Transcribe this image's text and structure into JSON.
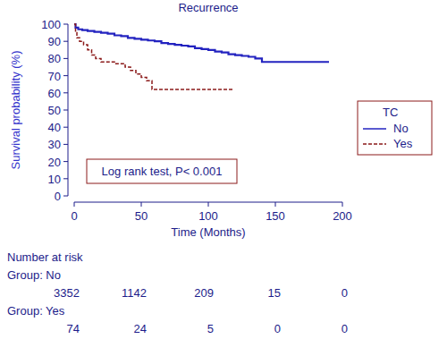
{
  "chart_data": {
    "type": "step",
    "title": "Recurrence",
    "x_label": "Time (Months)",
    "y_label": "Survival probability (%)",
    "xlim": [
      0,
      200
    ],
    "ylim": [
      0,
      100
    ],
    "xticks": [
      0,
      50,
      100,
      150,
      200
    ],
    "yticks": [
      0,
      10,
      20,
      30,
      40,
      50,
      60,
      70,
      80,
      90,
      100
    ],
    "legend": "right",
    "legend_title": "TC",
    "annotation": "Log rank test, P< 0.001",
    "series": [
      {
        "name": "No",
        "color": "#2323c0",
        "line_style": "solid",
        "x": [
          0,
          1,
          3,
          6,
          10,
          15,
          20,
          25,
          30,
          35,
          40,
          45,
          50,
          55,
          60,
          65,
          70,
          75,
          80,
          85,
          90,
          95,
          100,
          105,
          110,
          115,
          120,
          125,
          130,
          135,
          140,
          190
        ],
        "values": [
          100,
          98,
          97,
          96.5,
          96,
          95.5,
          95,
          94.5,
          93.5,
          93,
          92,
          91.5,
          91,
          90.5,
          90,
          89,
          88.5,
          88,
          87.5,
          87,
          86,
          85.5,
          85,
          84,
          83.5,
          82.5,
          82,
          81.5,
          81,
          80,
          78,
          78
        ]
      },
      {
        "name": "Yes",
        "color": "#8b1a1a",
        "line_style": "dashed",
        "x": [
          0,
          1,
          2,
          4,
          7,
          10,
          13,
          16,
          20,
          30,
          38,
          42,
          46,
          50,
          54,
          58,
          118
        ],
        "values": [
          100,
          95,
          92,
          90,
          88,
          85,
          82,
          80,
          78,
          77,
          75,
          73,
          71,
          69,
          67,
          62,
          62
        ]
      }
    ],
    "risk_table": {
      "title": "Number at risk",
      "groups": [
        {
          "label": "Group: No",
          "counts": [
            3352,
            1142,
            209,
            15,
            0
          ]
        },
        {
          "label": "Group: Yes",
          "counts": [
            74,
            24,
            5,
            0,
            0
          ]
        }
      ]
    }
  }
}
